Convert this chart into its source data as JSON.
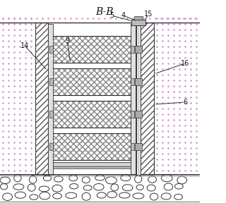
{
  "title": "B-B",
  "bg_color": "#ffffff",
  "line_color": "#333333",
  "soil_dot_color": "#cc99cc",
  "hatch_color": "#666666",
  "mesh_fill": "#d4d4d4",
  "wall_fill": "#ffffff",
  "gravel_fill": "#ffffff",
  "labels": [
    "14",
    "9",
    "5",
    "4",
    "15",
    "16",
    "6"
  ]
}
